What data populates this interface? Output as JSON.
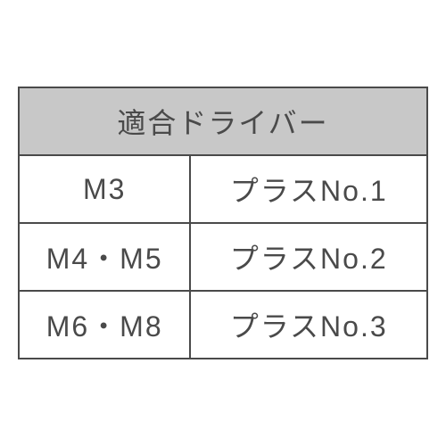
{
  "table": {
    "header": "適合ドライバー",
    "header_bg_color": "#c8c8c8",
    "border_color": "#4a4a4a",
    "text_color": "#4a4a4a",
    "cell_bg_color": "#ffffff",
    "font_size": 32,
    "rows": [
      {
        "size": "M3",
        "driver": "プラスNo.1"
      },
      {
        "size": "M4・M5",
        "driver": "プラスNo.2"
      },
      {
        "size": "M6・M8",
        "driver": "プラスNo.3"
      }
    ]
  }
}
